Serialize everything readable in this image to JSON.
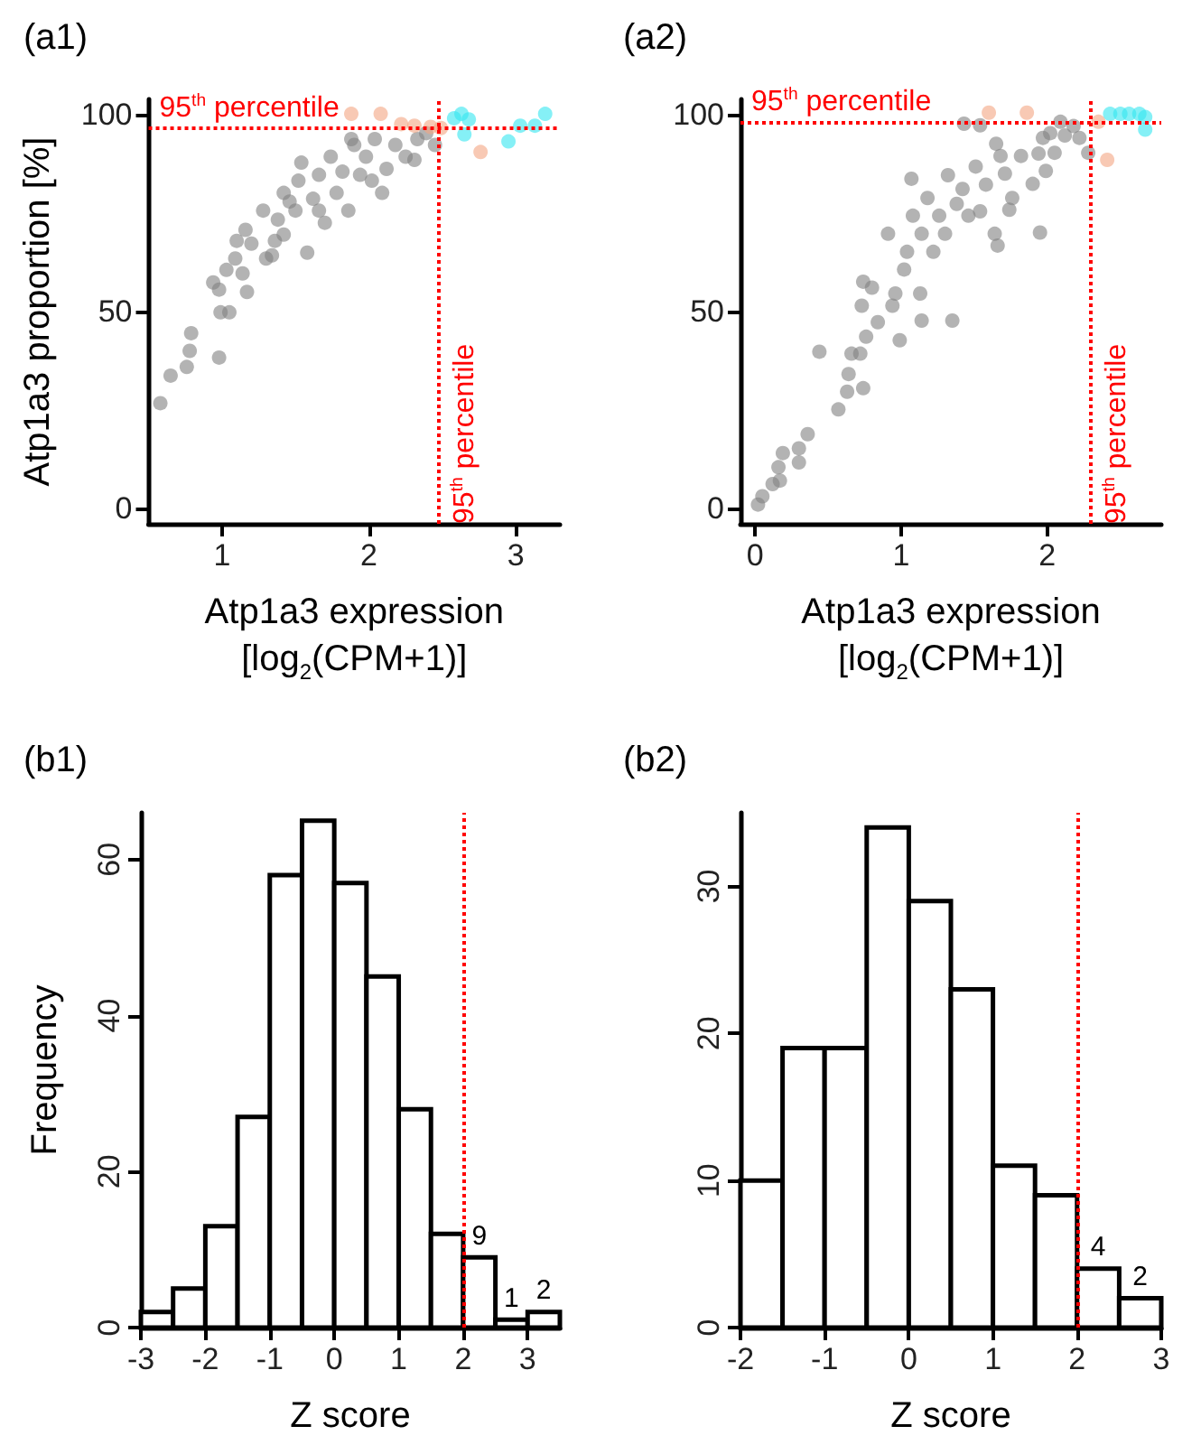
{
  "chart_data": [
    {
      "type": "scatter",
      "title": "(a1)",
      "xlabel": "Atp1a3 expression\n[log$_{2}$(CPM+1)]",
      "ylabel": "Atp1a3 proportion [%]",
      "marker": "circle",
      "legend": false,
      "grid": false,
      "xlim": [
        0.5,
        3.3
      ],
      "xticks": [
        1,
        2,
        3
      ],
      "ylim": [
        -4,
        104
      ],
      "yticks": [
        0,
        50,
        100
      ],
      "series": [
        {
          "color": "#808080",
          "x": [
            0.58,
            0.65,
            0.76,
            0.78,
            0.79,
            0.98,
            0.99,
            1.05,
            0.94,
            0.98,
            1.17,
            1.03,
            1.14,
            1.09,
            1.1,
            1.2,
            1.16,
            1.3,
            1.34,
            1.28,
            1.38,
            1.36,
            1.42,
            1.5,
            1.58,
            1.52,
            1.62,
            1.66,
            1.74,
            1.7,
            1.78,
            1.82,
            1.86,
            1.9,
            1.94,
            1.98,
            2.04,
            2.09,
            2.12,
            2.18,
            2.25,
            2.31,
            2.33,
            2.39,
            2.45,
            1.88,
            1.66,
            1.42,
            1.46,
            2.02,
            1.54
          ],
          "values": [
            26.7,
            33.7,
            35.9,
            40,
            44.5,
            38.3,
            49.8,
            49.8,
            57.4,
            55.6,
            55,
            60.6,
            59.7,
            63.5,
            68,
            67.3,
            70.8,
            63.5,
            64.3,
            75.7,
            73.4,
            68,
            80.2,
            75.7,
            65,
            83.3,
            78.7,
            84.8,
            89.4,
            72.6,
            80.2,
            85.6,
            75.7,
            92.4,
            84.8,
            89.4,
            93.9,
            80.2,
            86.3,
            92.4,
            89.4,
            88.6,
            93.9,
            95.4,
            92.4,
            93.9,
            75.7,
            69.6,
            78,
            83.3,
            87.9
          ]
        },
        {
          "color": "#f4a582",
          "x": [
            1.88,
            2.08,
            2.22,
            2.31,
            2.42,
            2.49,
            2.76
          ],
          "values": [
            100.3,
            100.3,
            97.7,
            97.3,
            97,
            96.7,
            90.6
          ]
        },
        {
          "color": "#33e6f0",
          "x": [
            2.58,
            2.63,
            2.68,
            2.65,
            2.95,
            3.03,
            3.13,
            3.2
          ],
          "values": [
            99.2,
            100.3,
            98.9,
            95.1,
            93.3,
            97.3,
            97.3,
            100.3
          ]
        }
      ],
      "ref_lines": [
        {
          "axis": "y",
          "value": 96.7,
          "label": "95$^{th}$ percentile",
          "color": "#ff0000",
          "line_style": "dotted"
        },
        {
          "axis": "x",
          "value": 2.47,
          "label": "95$^{th}$ percentile",
          "color": "#ff0000",
          "line_style": "dotted"
        }
      ]
    },
    {
      "type": "scatter",
      "title": "(a2)",
      "xlabel": "Atp1a3 expression\n[log$_{2}$(CPM+1)]",
      "marker": "circle",
      "legend": false,
      "grid": false,
      "xlim": [
        -0.1,
        2.78
      ],
      "xticks": [
        0,
        1,
        2
      ],
      "ylim": [
        -4,
        104
      ],
      "yticks": [
        0,
        50,
        100
      ],
      "series": [
        {
          "color": "#808080",
          "x": [
            0.02,
            0.05,
            0.12,
            0.17,
            0.16,
            0.19,
            0.3,
            0.3,
            0.36,
            0.44,
            0.57,
            0.63,
            0.64,
            0.66,
            0.74,
            0.72,
            0.76,
            0.73,
            0.74,
            0.8,
            0.84,
            0.91,
            0.94,
            0.96,
            0.99,
            1.02,
            1.04,
            1.08,
            1.07,
            1.13,
            1.14,
            1.14,
            1.18,
            1.22,
            1.26,
            1.32,
            1.35,
            1.3,
            1.38,
            1.42,
            1.46,
            1.43,
            1.51,
            1.54,
            1.58,
            1.64,
            1.66,
            1.65,
            1.68,
            1.71,
            1.76,
            1.82,
            1.9,
            1.94,
            1.95,
            1.97,
            1.99,
            2.02,
            2.05,
            2.09,
            2.12,
            2.18,
            2.22,
            2.28,
            1.74,
            1.54
          ],
          "values": [
            0.9,
            3,
            6.1,
            7,
            10.4,
            14,
            11.6,
            15.2,
            18.8,
            39.8,
            25.1,
            29.6,
            34.1,
            39.3,
            30.5,
            39.3,
            43.6,
            51.5,
            57.6,
            56.1,
            47.3,
            69.8,
            51.5,
            54.6,
            42.7,
            60.7,
            65.2,
            74.4,
            83.8,
            54.6,
            47.7,
            69.8,
            78.9,
            65.2,
            74.4,
            84.7,
            47.7,
            69.8,
            77.4,
            81.2,
            74.4,
            97.8,
            86.9,
            75.5,
            82.3,
            69.8,
            66.8,
            92.7,
            89.6,
            85.1,
            78.9,
            89.6,
            82.5,
            90.2,
            70.1,
            94.2,
            85.8,
            95.4,
            90.4,
            98.3,
            94.8,
            97.2,
            94.2,
            90.4,
            75.9,
            97.4
          ]
        },
        {
          "color": "#f4a582",
          "x": [
            1.6,
            1.86,
            2.35,
            2.41
          ],
          "values": [
            100.6,
            100.6,
            98.3,
            88.6
          ]
        },
        {
          "color": "#33e6f0",
          "x": [
            2.43,
            2.5,
            2.56,
            2.63,
            2.67,
            2.67
          ],
          "values": [
            100.3,
            100.3,
            100.3,
            100.3,
            99.5,
            96.3
          ]
        }
      ],
      "ref_lines": [
        {
          "axis": "y",
          "value": 98.3,
          "label": "95$^{th}$ percentile",
          "color": "#ff0000",
          "line_style": "dotted"
        },
        {
          "axis": "x",
          "value": 2.29,
          "label": "95$^{th}$ percentile",
          "color": "#ff0000",
          "line_style": "dotted"
        }
      ]
    },
    {
      "type": "histogram",
      "title": "(b1)",
      "xlabel": "Z score",
      "ylabel": "Frequency",
      "grid": false,
      "legend": false,
      "bins": [
        -3,
        -2.5,
        -2,
        -1.5,
        -1,
        -0.5,
        0,
        0.5,
        1,
        1.5,
        2,
        2.5,
        3,
        3.5
      ],
      "values": [
        2,
        5,
        13,
        27,
        58,
        65,
        57,
        45,
        28,
        12,
        9,
        1,
        2
      ],
      "value_labels": [
        null,
        null,
        null,
        null,
        null,
        null,
        null,
        null,
        null,
        null,
        "9",
        "1",
        "2"
      ],
      "xlim": [
        -3,
        3.5
      ],
      "xticks": [
        -3,
        -2,
        -1,
        0,
        1,
        2,
        3
      ],
      "ylim": [
        0,
        66
      ],
      "yticks": [
        0,
        20,
        40,
        60
      ],
      "ref_lines": [
        {
          "axis": "x",
          "value": 2,
          "color": "#ff0000",
          "line_style": "dotted"
        }
      ]
    },
    {
      "type": "histogram",
      "title": "(b2)",
      "xlabel": "Z score",
      "grid": false,
      "legend": false,
      "bins": [
        -2,
        -1.5,
        -1,
        -0.5,
        0,
        0.5,
        1,
        1.5,
        2,
        2.5,
        3
      ],
      "values": [
        10,
        19,
        19,
        34,
        29,
        23,
        11,
        9,
        4,
        2
      ],
      "value_labels": [
        null,
        null,
        null,
        null,
        null,
        null,
        null,
        null,
        "4",
        "2"
      ],
      "xlim": [
        -2,
        3
      ],
      "xticks": [
        -2,
        -1,
        0,
        1,
        2,
        3
      ],
      "ylim": [
        0,
        35
      ],
      "yticks": [
        0,
        10,
        20,
        30
      ],
      "ref_lines": [
        {
          "axis": "x",
          "value": 2,
          "color": "#ff0000",
          "line_style": "dotted"
        }
      ]
    }
  ]
}
